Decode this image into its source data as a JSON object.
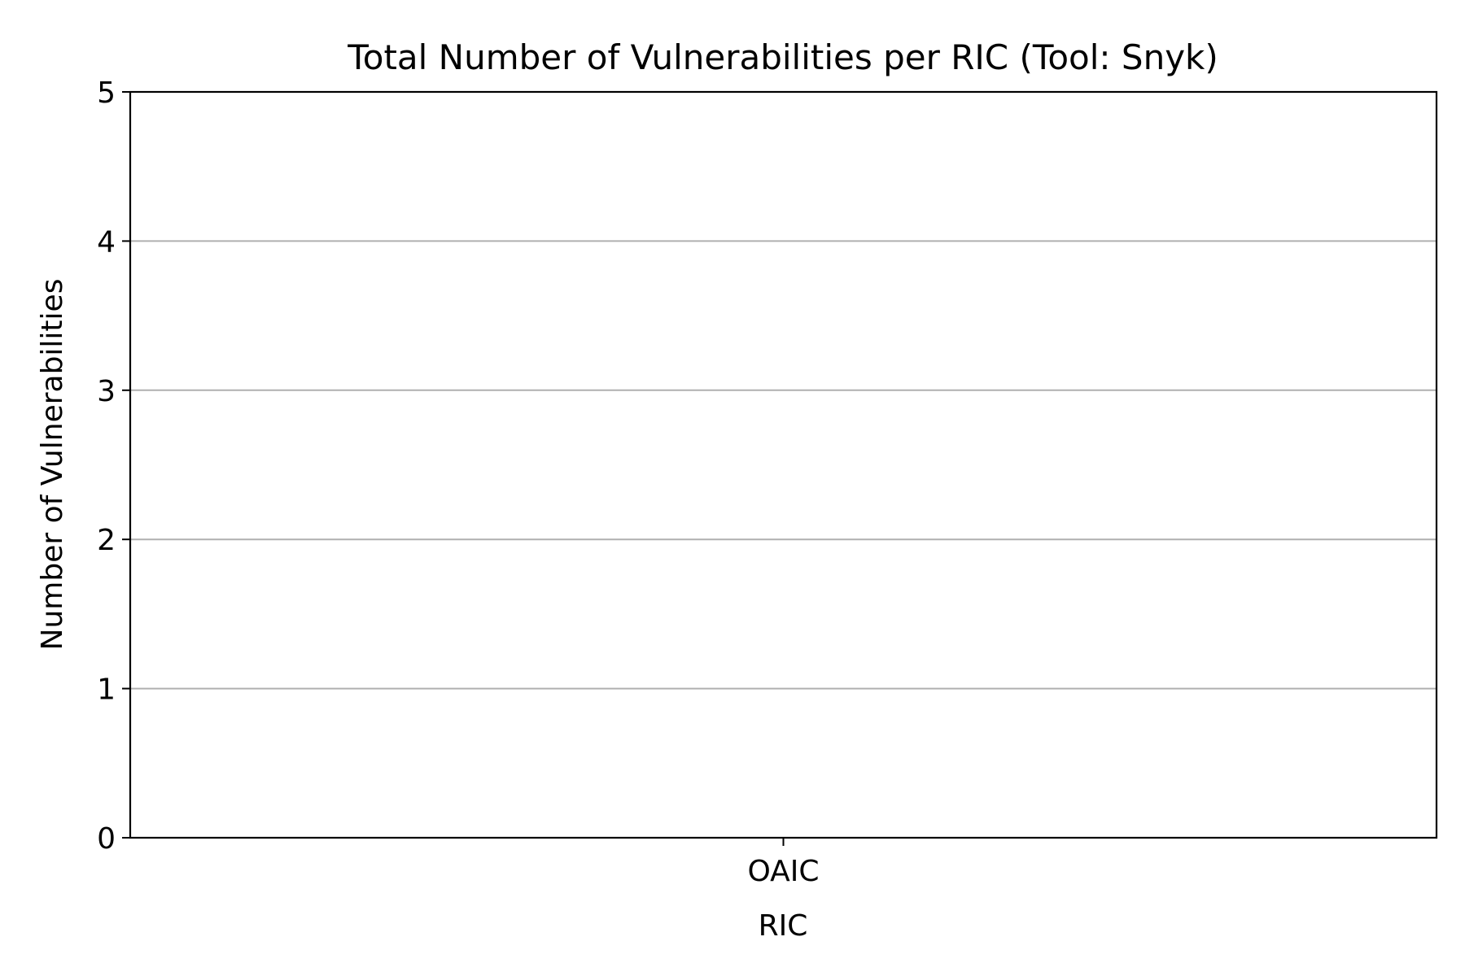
{
  "chart_data": {
    "type": "bar",
    "title": "Total Number of Vulnerabilities per RIC (Tool: Snyk)",
    "xlabel": "RIC",
    "ylabel": "Number of Vulnerabilities",
    "categories": [
      "OAIC"
    ],
    "values": [
      0
    ],
    "ylim": [
      0,
      5
    ],
    "yticks": [
      0,
      1,
      2,
      3,
      4,
      5
    ],
    "grid": "y",
    "legend": "none"
  },
  "colors": {
    "axis": "#000000",
    "grid": "#b0b0b0",
    "bar": "#1f77b4",
    "background": "#ffffff"
  }
}
